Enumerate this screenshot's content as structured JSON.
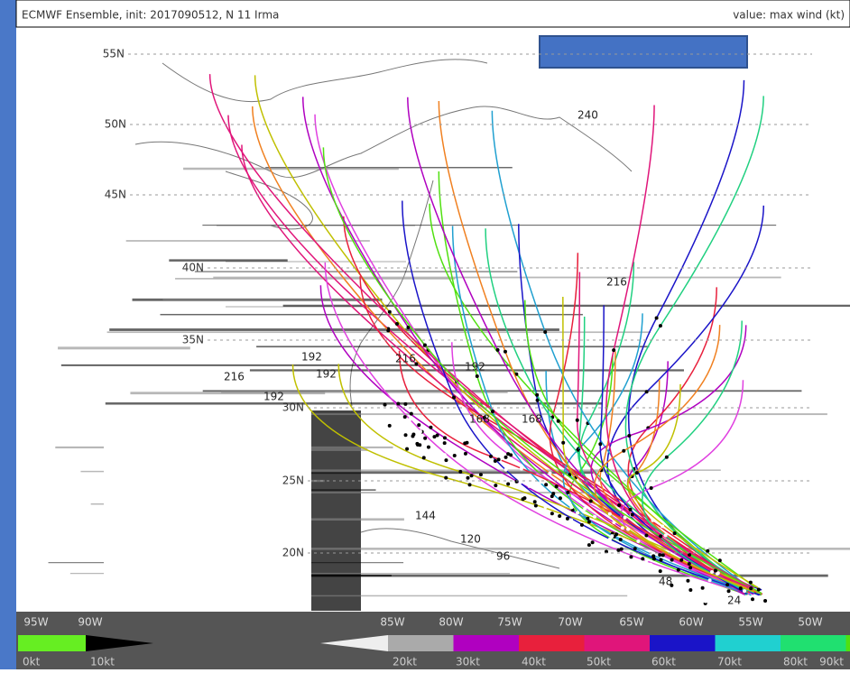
{
  "header": {
    "title": "ECMWF Ensemble, init: 2017090512, N 11 Irma",
    "value_note": "value: max wind (kt)"
  },
  "map": {
    "lat_labels": [
      "55N",
      "50N",
      "45N",
      "40N",
      "35N",
      "30N",
      "25N",
      "20N"
    ],
    "lon_labels": [
      "95W",
      "90W",
      "85W",
      "80W",
      "75W",
      "70W",
      "65W",
      "60W",
      "55W",
      "50W"
    ],
    "track_labels": [
      "240",
      "216",
      "216",
      "192",
      "192",
      "192",
      "216",
      "192",
      "168",
      "168",
      "144",
      "120",
      "96",
      "48",
      "24"
    ]
  },
  "colorbar": {
    "labels": [
      "0kt",
      "10kt",
      "20kt",
      "30kt",
      "40kt",
      "50kt",
      "60kt",
      "70kt",
      "80kt",
      "90kt"
    ]
  }
}
